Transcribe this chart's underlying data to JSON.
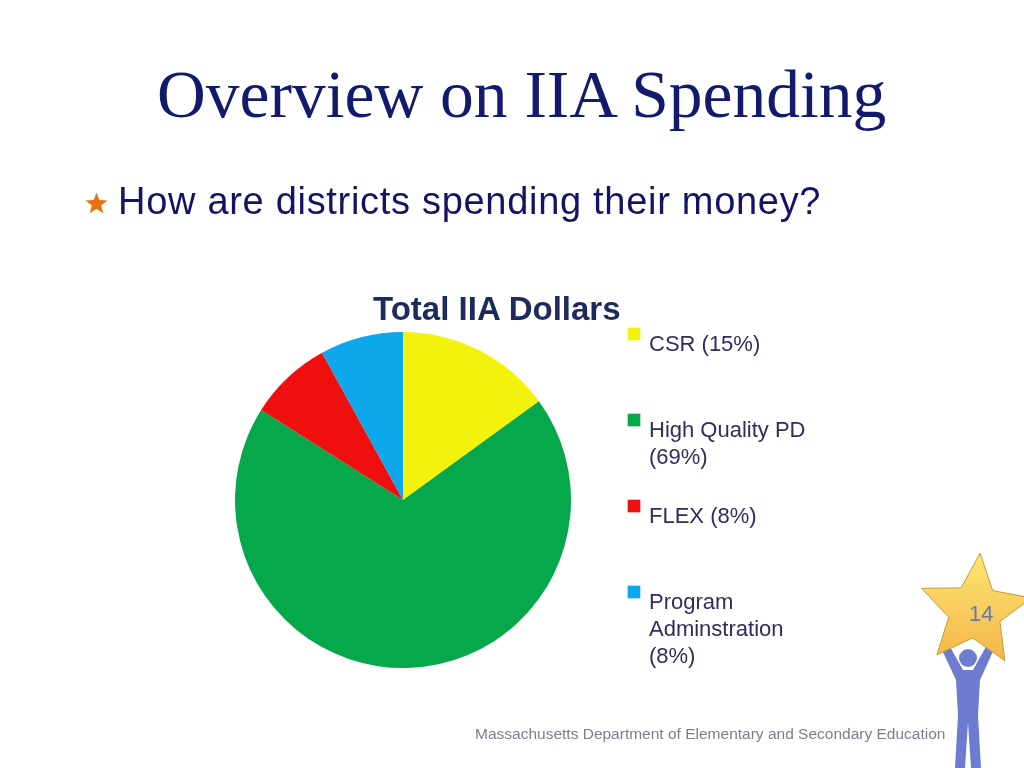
{
  "chart_data": {
    "type": "pie",
    "title": "Total IIA Dollars",
    "categories": [
      "CSR (15%)",
      "High Quality PD (69%)",
      "FLEX (8%)",
      "Program Adminstration (8%)"
    ],
    "values": [
      15,
      69,
      8,
      8
    ],
    "colors": [
      "#f3f20d",
      "#06a84b",
      "#f00f0f",
      "#0da8ec"
    ],
    "legend": "right",
    "annotations": [
      "Overview on IIA Spending",
      "How are districts spending their money?",
      "Massachusetts Department of Elementary and Secondary Education",
      "14"
    ]
  }
}
